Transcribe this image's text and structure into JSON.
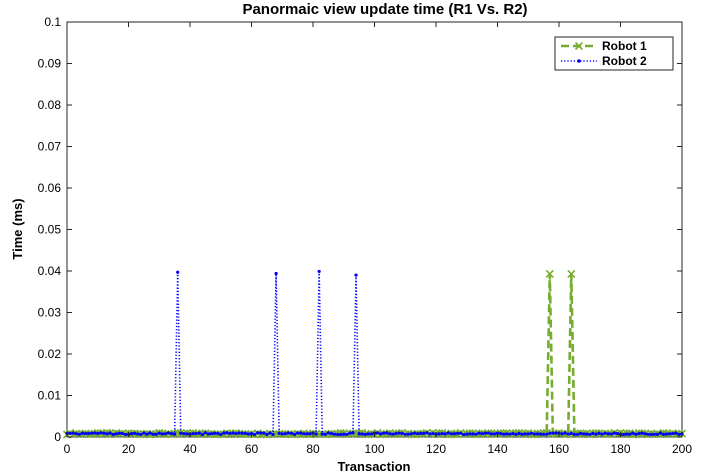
{
  "chart_data": {
    "type": "line",
    "title": "Panormaic view update time (R1 Vs. R2)",
    "xlabel": "Transaction",
    "ylabel": "Time (ms)",
    "xlim": [
      0,
      200
    ],
    "ylim": [
      0,
      0.1
    ],
    "xticks": [
      "0",
      "20",
      "40",
      "60",
      "80",
      "100",
      "120",
      "140",
      "160",
      "180",
      "200"
    ],
    "yticks": [
      "0",
      "0.01",
      "0.02",
      "0.03",
      "0.04",
      "0.05",
      "0.06",
      "0.07",
      "0.08",
      "0.09",
      "0.1"
    ],
    "grid": false,
    "legend_position": "top-right",
    "series": [
      {
        "name": "Robot 1",
        "color": "#77ac30",
        "line_style": "dashed",
        "marker": "x",
        "baseline": 0.0008,
        "peaks": [
          {
            "x": 157,
            "y": 0.0393
          },
          {
            "x": 164,
            "y": 0.0393
          }
        ]
      },
      {
        "name": "Robot 2",
        "color": "#0000ff",
        "line_style": "dotted",
        "marker": "dot",
        "baseline": 0.0008,
        "peaks": [
          {
            "x": 36,
            "y": 0.0397
          },
          {
            "x": 68,
            "y": 0.0394
          },
          {
            "x": 82,
            "y": 0.0399
          },
          {
            "x": 94,
            "y": 0.039
          }
        ]
      }
    ]
  }
}
